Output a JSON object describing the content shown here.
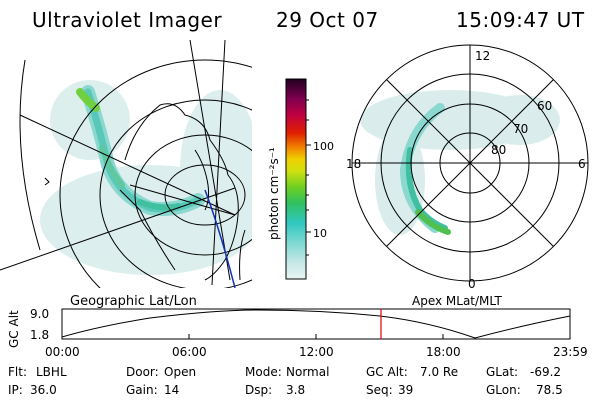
{
  "header": {
    "instrument": "Ultraviolet Imager",
    "date": "29 Oct 07",
    "time": "15:09:47 UT"
  },
  "colorbar": {
    "unit_label": "photon cm⁻²s⁻¹",
    "ticks": [
      "100",
      "10"
    ]
  },
  "geo_map": {
    "caption": "Geographic Lat/Lon"
  },
  "polar_plot": {
    "caption": "Apex MLat/MLT",
    "mlt_labels": {
      "top": "12",
      "bottom": "0",
      "left": "18",
      "right": "6"
    },
    "lat_labels": [
      "60",
      "70",
      "80"
    ]
  },
  "altitude_strip": {
    "axis_label": "GC Alt",
    "y_ticks": [
      "9.0",
      "1.8"
    ],
    "x_ticks": [
      "00:00",
      "06:00",
      "12:00",
      "18:00",
      "23:59"
    ],
    "marker_color": "#e00000"
  },
  "status": {
    "filter": {
      "label": "Flt:",
      "value": "LBHL"
    },
    "ip": {
      "label": "IP:",
      "value": "36.0"
    },
    "door": {
      "label": "Door:",
      "value": "Open"
    },
    "gain": {
      "label": "Gain:",
      "value": "14"
    },
    "mode": {
      "label": "Mode:",
      "value": "Normal"
    },
    "dsp": {
      "label": "Dsp:",
      "value": "3.8"
    },
    "gc_alt": {
      "label": "GC Alt:",
      "value": "7.0 Re"
    },
    "seq": {
      "label": "Seq:",
      "value": "39"
    },
    "glat": {
      "label": "GLat:",
      "value": "-69.2"
    },
    "glon": {
      "label": "GLon:",
      "value": "78.5"
    }
  },
  "colors": {
    "aurora_low": "#c8e8e6",
    "aurora_mid": "#5ad0c8",
    "aurora_high": "#30c060",
    "aurora_peak": "#8ce020"
  }
}
